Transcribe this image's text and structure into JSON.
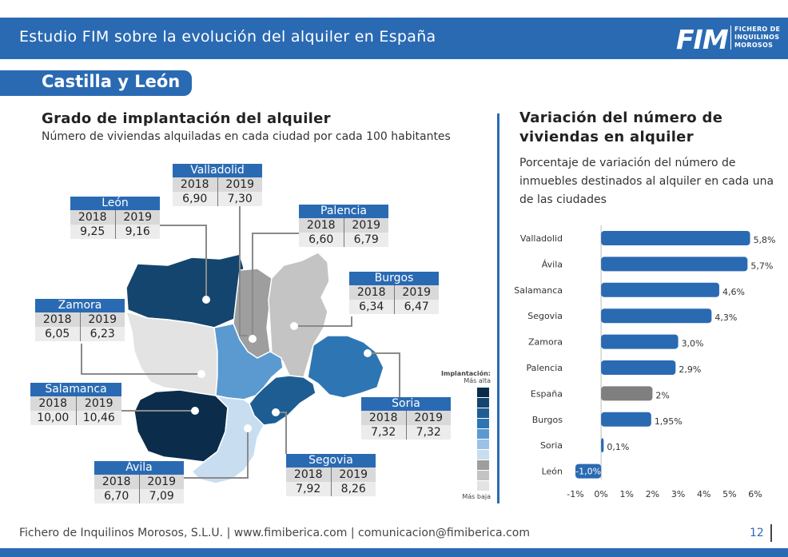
{
  "header": {
    "title": "Estudio FIM sobre la evolución del alquiler en España",
    "logo_text": "FIM",
    "logo_sub": [
      "FICHERO DE",
      "INQUILINOS",
      "MOROSOS"
    ]
  },
  "region": "Castilla y León",
  "left": {
    "title": "Grado de implantación del alquiler",
    "subtitle": "Número de viviendas alquiladas en cada ciudad por cada 100 habitantes",
    "cities": [
      {
        "name": "Valladolid",
        "y2018": "6,90",
        "y2019": "7,30"
      },
      {
        "name": "León",
        "y2018": "9,25",
        "y2019": "9,16"
      },
      {
        "name": "Palencia",
        "y2018": "6,60",
        "y2019": "6,79"
      },
      {
        "name": "Burgos",
        "y2018": "6,34",
        "y2019": "6,47"
      },
      {
        "name": "Zamora",
        "y2018": "6,05",
        "y2019": "6,23"
      },
      {
        "name": "Salamanca",
        "y2018": "10,00",
        "y2019": "10,46"
      },
      {
        "name": "Soria",
        "y2018": "7,32",
        "y2019": "7,32"
      },
      {
        "name": "Ávila",
        "y2018": "6,70",
        "y2019": "7,09"
      },
      {
        "name": "Segovia",
        "y2018": "7,92",
        "y2019": "8,26"
      }
    ],
    "year_labels": [
      "2018",
      "2019"
    ],
    "legend": {
      "title": "Implantación:",
      "high": "Más alta",
      "low": "Más baja",
      "colors": [
        "#0b2d4b",
        "#13456e",
        "#1d5d92",
        "#2d76b3",
        "#5a9ad0",
        "#9bc2e6",
        "#c8ddf0",
        "#9e9e9e",
        "#c4c4c4",
        "#e3e3e3"
      ]
    },
    "map_colors": {
      "leon": "#13456e",
      "palencia": "#9e9e9e",
      "burgos": "#c4c4c4",
      "soria": "#2d76b3",
      "zamora": "#e3e3e3",
      "valladolid": "#5a9ad0",
      "segovia": "#1d5d92",
      "salamanca": "#0b2d4b",
      "avila": "#c8ddf0"
    }
  },
  "right": {
    "title_line1": "Variación del número de",
    "title_line2": "viviendas en alquiler",
    "subtitle_lines": [
      "Porcentaje de variación del número de",
      "inmuebles destinados al alquiler en cada una",
      "de las ciudades"
    ]
  },
  "chart_data": {
    "type": "bar",
    "orientation": "horizontal",
    "categories": [
      "Valladolid",
      "Ávila",
      "Salamanca",
      "Segovia",
      "Zamora",
      "Palencia",
      "España",
      "Burgos",
      "Soria",
      "León"
    ],
    "values": [
      5.8,
      5.7,
      4.6,
      4.3,
      3.0,
      2.9,
      2.0,
      1.95,
      0.1,
      -1.0
    ],
    "value_labels": [
      "5,8%",
      "5,7%",
      "4,6%",
      "4,3%",
      "3,0%",
      "2,9%",
      "2%",
      "1,95%",
      "0,1%",
      "-1,0%"
    ],
    "xlim": [
      -1,
      6
    ],
    "xticks": [
      -1,
      0,
      1,
      2,
      3,
      4,
      5,
      6
    ],
    "xtick_labels": [
      "-1%",
      "0%",
      "1%",
      "2%",
      "3%",
      "4%",
      "5%",
      "6%"
    ],
    "bar_color": "#2a6ab3",
    "highlight_color": "#7f7f7f",
    "highlight_category": "España",
    "grid": false
  },
  "footer": {
    "text": "Fichero de Inquilinos Morosos, S.L.U. | www.fimiberica.com | comunicacion@fimiberica.com",
    "page": "12"
  }
}
